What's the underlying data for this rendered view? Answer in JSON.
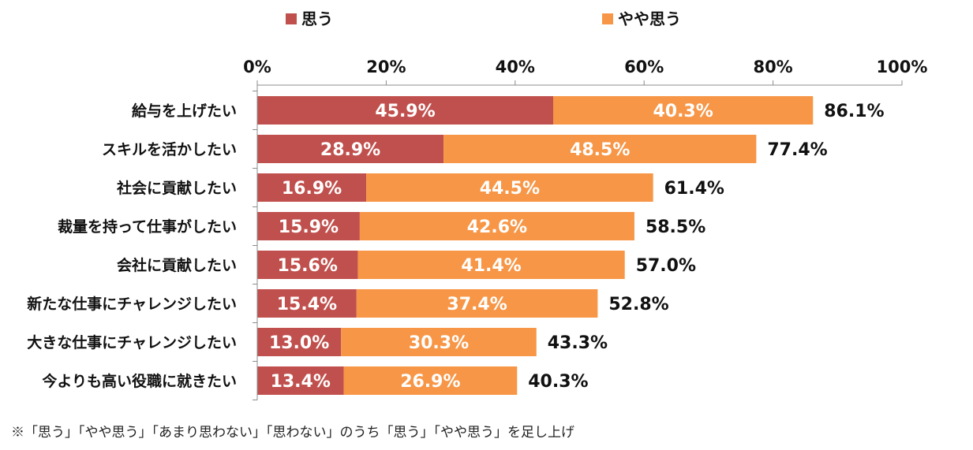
{
  "chart_data": {
    "type": "bar",
    "orientation": "horizontal",
    "stacked": true,
    "categories": [
      "給与を上げたい",
      "スキルを活かしたい",
      "社会に貢献したい",
      "裁量を持って仕事がしたい",
      "会社に貢献したい",
      "新たな仕事にチャレンジしたい",
      "大きな仕事にチャレンジしたい",
      "今よりも高い役職に就きたい"
    ],
    "series": [
      {
        "name": "思う",
        "color": "#C0504D",
        "values": [
          45.9,
          28.9,
          16.9,
          15.9,
          15.6,
          15.4,
          13.0,
          13.4
        ],
        "labels": [
          "45.9%",
          "28.9%",
          "16.9%",
          "15.9%",
          "15.6%",
          "15.4%",
          "13.0%",
          "13.4%"
        ]
      },
      {
        "name": "やや思う",
        "color": "#F79646",
        "values": [
          40.3,
          48.5,
          44.5,
          42.6,
          41.4,
          37.4,
          30.3,
          26.9
        ],
        "labels": [
          "40.3%",
          "48.5%",
          "44.5%",
          "42.6%",
          "41.4%",
          "37.4%",
          "30.3%",
          "26.9%"
        ]
      }
    ],
    "totals": [
      86.1,
      77.4,
      61.4,
      58.5,
      57.0,
      52.8,
      43.3,
      40.3
    ],
    "total_labels": [
      "86.1%",
      "77.4%",
      "61.4%",
      "58.5%",
      "57.0%",
      "52.8%",
      "43.3%",
      "40.3%"
    ],
    "xlim": [
      0,
      100
    ],
    "xticks": [
      0,
      20,
      40,
      60,
      80,
      100
    ],
    "xtick_labels": [
      "0%",
      "20%",
      "40%",
      "60%",
      "80%",
      "100%"
    ],
    "x_axis_position": "top",
    "legend_position": "top",
    "grid": false
  },
  "footnote": "※「思う」「やや思う」「あまり思わない」「思わない」のうち「思う」「やや思う」を足し上げ"
}
